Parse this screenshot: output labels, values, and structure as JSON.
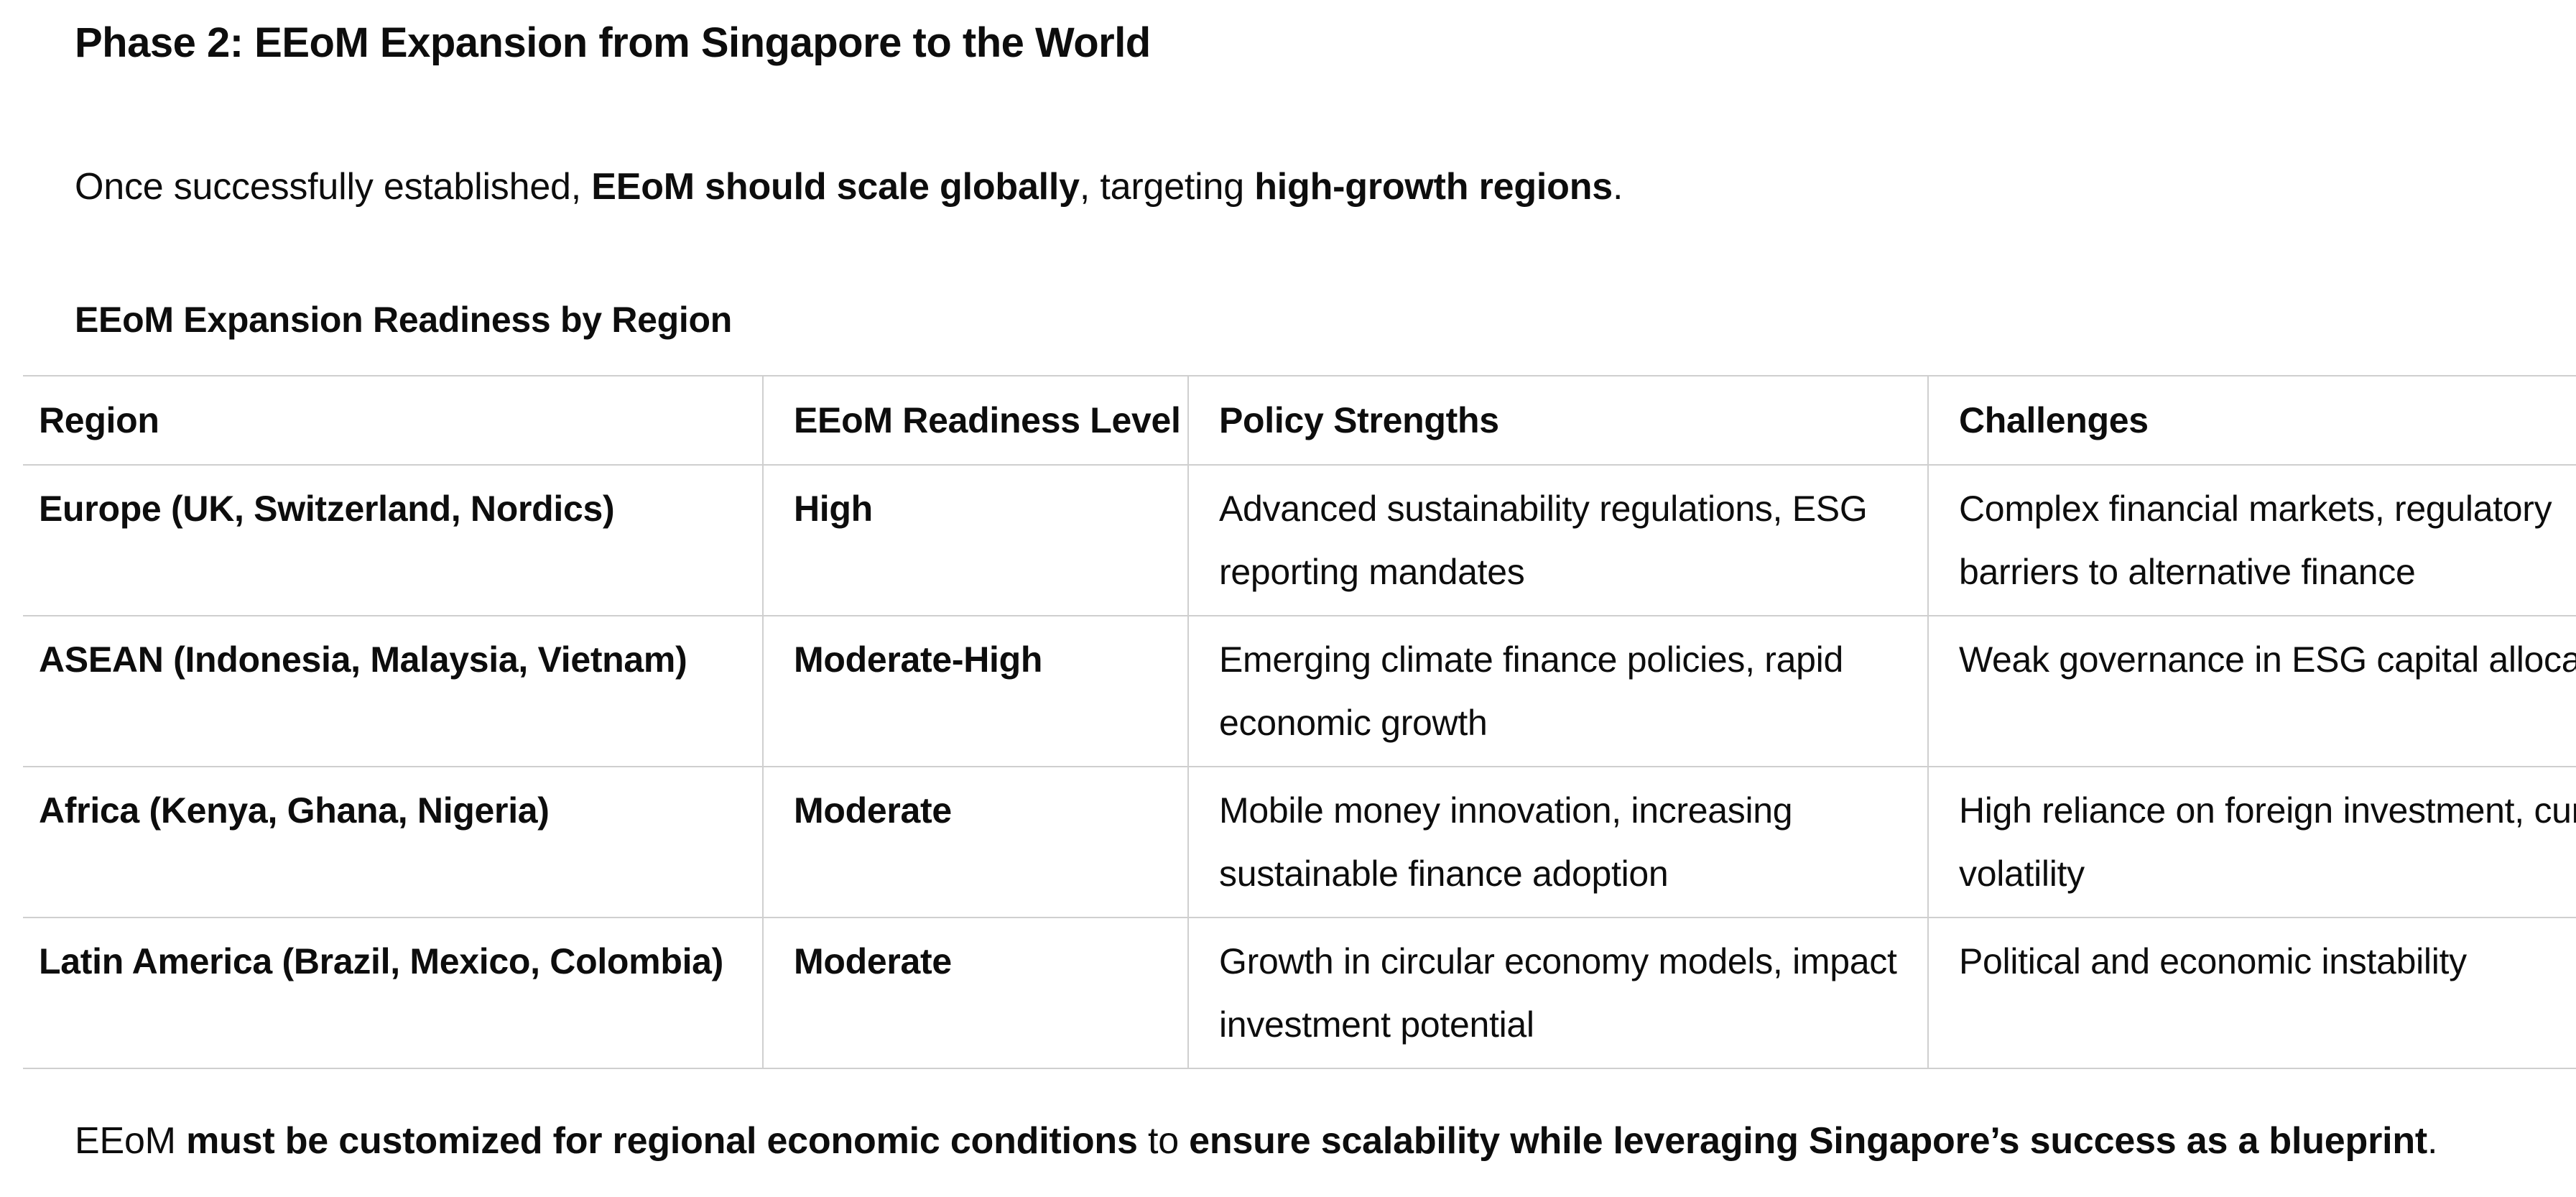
{
  "heading": "Phase 2: EEoM Expansion from Singapore to the World",
  "intro": {
    "t1": "Once successfully established, ",
    "b1": "EEoM should scale globally",
    "t2": ", targeting ",
    "b2": "high-growth regions",
    "t3": "."
  },
  "table_title": "EEoM Expansion Readiness by Region",
  "table": {
    "headers": [
      "Region",
      "EEoM Readiness Level",
      "Policy Strengths",
      "Challenges"
    ],
    "rows": [
      {
        "region": "Europe (UK, Switzerland, Nordics)",
        "readiness": "High",
        "strengths": "Advanced sustainability regulations, ESG reporting mandates",
        "challenges": "Complex financial markets, regulatory barriers to alternative finance"
      },
      {
        "region": "ASEAN (Indonesia, Malaysia, Vietnam)",
        "readiness": "Moderate-High",
        "strengths": "Emerging climate finance policies, rapid economic growth",
        "challenges": "Weak governance in ESG capital allocati"
      },
      {
        "region": "Africa (Kenya, Ghana, Nigeria)",
        "readiness": "Moderate",
        "strengths": "Mobile money innovation, increasing sustainable finance adoption",
        "challenges": "High reliance on foreign investment, cur volatility"
      },
      {
        "region": "Latin America (Brazil, Mexico, Colombia)",
        "readiness": "Moderate",
        "strengths": "Growth in circular economy models, impact investment potential",
        "challenges": "Political and economic instability"
      }
    ]
  },
  "closing": {
    "t1": "EEoM ",
    "b1": "must be customized for regional economic conditions",
    "t2": " to ",
    "b2": "ensure scalability while leveraging Singapore’s success as a blueprint",
    "t3": "."
  }
}
